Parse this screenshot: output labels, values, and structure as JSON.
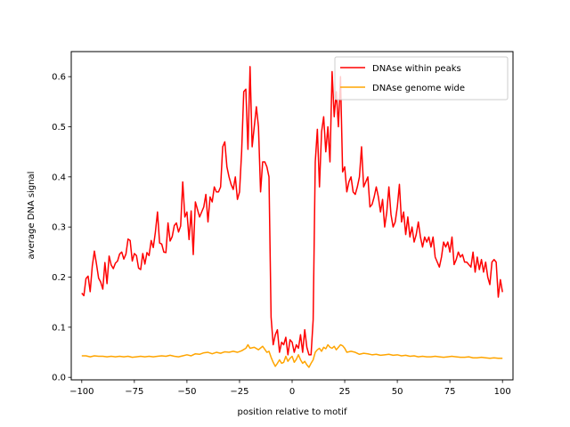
{
  "chart_data": {
    "type": "line",
    "xlabel": "position relative to motif",
    "ylabel": "average DNA signal",
    "xlim": [
      -105,
      105
    ],
    "ylim": [
      -0.005,
      0.65
    ],
    "xticks": [
      -100,
      -75,
      -50,
      -25,
      0,
      25,
      50,
      75,
      100
    ],
    "yticks": [
      0.0,
      0.1,
      0.2,
      0.3,
      0.4,
      0.5,
      0.6
    ],
    "grid": false,
    "legend_position": "top-right",
    "series": [
      {
        "name": "DNAse within peaks",
        "color": "#ff0000",
        "points": [
          [
            -100,
            0.168
          ],
          [
            -99,
            0.163
          ],
          [
            -98,
            0.197
          ],
          [
            -97,
            0.202
          ],
          [
            -96,
            0.171
          ],
          [
            -95,
            0.222
          ],
          [
            -94,
            0.252
          ],
          [
            -93,
            0.226
          ],
          [
            -92,
            0.198
          ],
          [
            -91,
            0.19
          ],
          [
            -90,
            0.176
          ],
          [
            -89,
            0.229
          ],
          [
            -88,
            0.187
          ],
          [
            -87,
            0.242
          ],
          [
            -86,
            0.224
          ],
          [
            -85,
            0.217
          ],
          [
            -84,
            0.228
          ],
          [
            -83,
            0.232
          ],
          [
            -82,
            0.246
          ],
          [
            -81,
            0.25
          ],
          [
            -80,
            0.236
          ],
          [
            -79,
            0.246
          ],
          [
            -78,
            0.276
          ],
          [
            -77,
            0.273
          ],
          [
            -76,
            0.232
          ],
          [
            -75,
            0.247
          ],
          [
            -74,
            0.243
          ],
          [
            -73,
            0.218
          ],
          [
            -72,
            0.215
          ],
          [
            -71,
            0.247
          ],
          [
            -70,
            0.226
          ],
          [
            -69,
            0.249
          ],
          [
            -68,
            0.243
          ],
          [
            -67,
            0.273
          ],
          [
            -66,
            0.259
          ],
          [
            -65,
            0.29
          ],
          [
            -64,
            0.33
          ],
          [
            -63,
            0.268
          ],
          [
            -62,
            0.266
          ],
          [
            -61,
            0.25
          ],
          [
            -60,
            0.249
          ],
          [
            -59,
            0.308
          ],
          [
            -58,
            0.272
          ],
          [
            -57,
            0.281
          ],
          [
            -56,
            0.303
          ],
          [
            -55,
            0.308
          ],
          [
            -54,
            0.29
          ],
          [
            -53,
            0.302
          ],
          [
            -52,
            0.39
          ],
          [
            -51,
            0.32
          ],
          [
            -50,
            0.33
          ],
          [
            -49,
            0.275
          ],
          [
            -48,
            0.332
          ],
          [
            -47,
            0.245
          ],
          [
            -46,
            0.35
          ],
          [
            -45,
            0.335
          ],
          [
            -44,
            0.32
          ],
          [
            -43,
            0.33
          ],
          [
            -42,
            0.34
          ],
          [
            -41,
            0.365
          ],
          [
            -40,
            0.31
          ],
          [
            -39,
            0.36
          ],
          [
            -38,
            0.35
          ],
          [
            -37,
            0.38
          ],
          [
            -36,
            0.37
          ],
          [
            -35,
            0.37
          ],
          [
            -34,
            0.38
          ],
          [
            -33,
            0.46
          ],
          [
            -32,
            0.47
          ],
          [
            -31,
            0.42
          ],
          [
            -30,
            0.4
          ],
          [
            -29,
            0.385
          ],
          [
            -28,
            0.375
          ],
          [
            -27,
            0.4
          ],
          [
            -26,
            0.355
          ],
          [
            -25,
            0.37
          ],
          [
            -24,
            0.45
          ],
          [
            -23,
            0.57
          ],
          [
            -22,
            0.575
          ],
          [
            -21,
            0.455
          ],
          [
            -20,
            0.62
          ],
          [
            -19,
            0.46
          ],
          [
            -18,
            0.5
          ],
          [
            -17,
            0.54
          ],
          [
            -16,
            0.5
          ],
          [
            -15,
            0.37
          ],
          [
            -14,
            0.43
          ],
          [
            -13,
            0.43
          ],
          [
            -12,
            0.42
          ],
          [
            -11,
            0.4
          ],
          [
            -10,
            0.12
          ],
          [
            -9,
            0.065
          ],
          [
            -8,
            0.085
          ],
          [
            -7,
            0.095
          ],
          [
            -6,
            0.05
          ],
          [
            -5,
            0.07
          ],
          [
            -4,
            0.065
          ],
          [
            -3,
            0.08
          ],
          [
            -2,
            0.045
          ],
          [
            -1,
            0.075
          ],
          [
            0,
            0.07
          ],
          [
            1,
            0.05
          ],
          [
            2,
            0.065
          ],
          [
            3,
            0.058
          ],
          [
            4,
            0.085
          ],
          [
            5,
            0.05
          ],
          [
            6,
            0.095
          ],
          [
            7,
            0.06
          ],
          [
            8,
            0.045
          ],
          [
            9,
            0.045
          ],
          [
            10,
            0.115
          ],
          [
            11,
            0.43
          ],
          [
            12,
            0.495
          ],
          [
            13,
            0.38
          ],
          [
            14,
            0.49
          ],
          [
            15,
            0.52
          ],
          [
            16,
            0.45
          ],
          [
            17,
            0.5
          ],
          [
            18,
            0.43
          ],
          [
            19,
            0.61
          ],
          [
            20,
            0.52
          ],
          [
            21,
            0.57
          ],
          [
            22,
            0.5
          ],
          [
            23,
            0.6
          ],
          [
            24,
            0.41
          ],
          [
            25,
            0.42
          ],
          [
            26,
            0.37
          ],
          [
            27,
            0.39
          ],
          [
            28,
            0.4
          ],
          [
            29,
            0.37
          ],
          [
            30,
            0.365
          ],
          [
            31,
            0.38
          ],
          [
            32,
            0.4
          ],
          [
            33,
            0.46
          ],
          [
            34,
            0.38
          ],
          [
            35,
            0.39
          ],
          [
            36,
            0.4
          ],
          [
            37,
            0.34
          ],
          [
            38,
            0.345
          ],
          [
            39,
            0.36
          ],
          [
            40,
            0.38
          ],
          [
            41,
            0.36
          ],
          [
            42,
            0.33
          ],
          [
            43,
            0.355
          ],
          [
            44,
            0.3
          ],
          [
            45,
            0.33
          ],
          [
            46,
            0.38
          ],
          [
            47,
            0.325
          ],
          [
            48,
            0.3
          ],
          [
            49,
            0.31
          ],
          [
            50,
            0.34
          ],
          [
            51,
            0.385
          ],
          [
            52,
            0.31
          ],
          [
            53,
            0.33
          ],
          [
            54,
            0.285
          ],
          [
            55,
            0.32
          ],
          [
            56,
            0.28
          ],
          [
            57,
            0.3
          ],
          [
            58,
            0.27
          ],
          [
            59,
            0.285
          ],
          [
            60,
            0.31
          ],
          [
            61,
            0.28
          ],
          [
            62,
            0.26
          ],
          [
            63,
            0.28
          ],
          [
            64,
            0.27
          ],
          [
            65,
            0.28
          ],
          [
            66,
            0.26
          ],
          [
            67,
            0.28
          ],
          [
            68,
            0.24
          ],
          [
            69,
            0.23
          ],
          [
            70,
            0.22
          ],
          [
            71,
            0.24
          ],
          [
            72,
            0.27
          ],
          [
            73,
            0.26
          ],
          [
            74,
            0.27
          ],
          [
            75,
            0.25
          ],
          [
            76,
            0.28
          ],
          [
            77,
            0.225
          ],
          [
            78,
            0.235
          ],
          [
            79,
            0.25
          ],
          [
            80,
            0.24
          ],
          [
            81,
            0.245
          ],
          [
            82,
            0.23
          ],
          [
            83,
            0.23
          ],
          [
            84,
            0.225
          ],
          [
            85,
            0.22
          ],
          [
            86,
            0.25
          ],
          [
            87,
            0.21
          ],
          [
            88,
            0.24
          ],
          [
            89,
            0.215
          ],
          [
            90,
            0.235
          ],
          [
            91,
            0.21
          ],
          [
            92,
            0.23
          ],
          [
            93,
            0.2
          ],
          [
            94,
            0.185
          ],
          [
            95,
            0.23
          ],
          [
            96,
            0.235
          ],
          [
            97,
            0.23
          ],
          [
            98,
            0.16
          ],
          [
            99,
            0.195
          ],
          [
            100,
            0.17
          ]
        ]
      },
      {
        "name": "DNAse genome wide",
        "color": "#ffa500",
        "points": [
          [
            -100,
            0.043
          ],
          [
            -98,
            0.043
          ],
          [
            -96,
            0.041
          ],
          [
            -94,
            0.043
          ],
          [
            -92,
            0.042
          ],
          [
            -90,
            0.042
          ],
          [
            -88,
            0.041
          ],
          [
            -86,
            0.042
          ],
          [
            -84,
            0.041
          ],
          [
            -82,
            0.042
          ],
          [
            -80,
            0.041
          ],
          [
            -78,
            0.042
          ],
          [
            -76,
            0.04
          ],
          [
            -74,
            0.041
          ],
          [
            -72,
            0.042
          ],
          [
            -70,
            0.041
          ],
          [
            -68,
            0.042
          ],
          [
            -66,
            0.041
          ],
          [
            -64,
            0.042
          ],
          [
            -62,
            0.043
          ],
          [
            -60,
            0.042
          ],
          [
            -58,
            0.044
          ],
          [
            -56,
            0.042
          ],
          [
            -54,
            0.041
          ],
          [
            -52,
            0.043
          ],
          [
            -50,
            0.045
          ],
          [
            -48,
            0.043
          ],
          [
            -46,
            0.047
          ],
          [
            -44,
            0.046
          ],
          [
            -42,
            0.049
          ],
          [
            -40,
            0.05
          ],
          [
            -38,
            0.047
          ],
          [
            -36,
            0.05
          ],
          [
            -34,
            0.048
          ],
          [
            -32,
            0.051
          ],
          [
            -30,
            0.05
          ],
          [
            -28,
            0.052
          ],
          [
            -26,
            0.05
          ],
          [
            -24,
            0.053
          ],
          [
            -22,
            0.058
          ],
          [
            -21,
            0.065
          ],
          [
            -20,
            0.058
          ],
          [
            -18,
            0.06
          ],
          [
            -16,
            0.055
          ],
          [
            -14,
            0.062
          ],
          [
            -12,
            0.05
          ],
          [
            -11,
            0.052
          ],
          [
            -10,
            0.04
          ],
          [
            -9,
            0.03
          ],
          [
            -8,
            0.022
          ],
          [
            -7,
            0.028
          ],
          [
            -6,
            0.035
          ],
          [
            -5,
            0.028
          ],
          [
            -4,
            0.03
          ],
          [
            -3,
            0.042
          ],
          [
            -2,
            0.032
          ],
          [
            -1,
            0.038
          ],
          [
            0,
            0.042
          ],
          [
            1,
            0.03
          ],
          [
            2,
            0.036
          ],
          [
            3,
            0.045
          ],
          [
            4,
            0.035
          ],
          [
            5,
            0.028
          ],
          [
            6,
            0.032
          ],
          [
            7,
            0.025
          ],
          [
            8,
            0.02
          ],
          [
            9,
            0.028
          ],
          [
            10,
            0.035
          ],
          [
            11,
            0.05
          ],
          [
            12,
            0.055
          ],
          [
            13,
            0.058
          ],
          [
            14,
            0.052
          ],
          [
            15,
            0.06
          ],
          [
            16,
            0.057
          ],
          [
            17,
            0.065
          ],
          [
            18,
            0.06
          ],
          [
            19,
            0.058
          ],
          [
            20,
            0.062
          ],
          [
            21,
            0.055
          ],
          [
            22,
            0.06
          ],
          [
            23,
            0.065
          ],
          [
            24,
            0.063
          ],
          [
            25,
            0.058
          ],
          [
            26,
            0.05
          ],
          [
            28,
            0.052
          ],
          [
            30,
            0.05
          ],
          [
            32,
            0.046
          ],
          [
            34,
            0.048
          ],
          [
            36,
            0.047
          ],
          [
            38,
            0.045
          ],
          [
            40,
            0.046
          ],
          [
            42,
            0.044
          ],
          [
            44,
            0.045
          ],
          [
            46,
            0.046
          ],
          [
            48,
            0.044
          ],
          [
            50,
            0.045
          ],
          [
            52,
            0.043
          ],
          [
            54,
            0.044
          ],
          [
            56,
            0.042
          ],
          [
            58,
            0.043
          ],
          [
            60,
            0.041
          ],
          [
            62,
            0.042
          ],
          [
            64,
            0.041
          ],
          [
            66,
            0.041
          ],
          [
            68,
            0.042
          ],
          [
            70,
            0.041
          ],
          [
            72,
            0.04
          ],
          [
            74,
            0.041
          ],
          [
            76,
            0.042
          ],
          [
            78,
            0.041
          ],
          [
            80,
            0.04
          ],
          [
            82,
            0.04
          ],
          [
            84,
            0.041
          ],
          [
            86,
            0.039
          ],
          [
            88,
            0.039
          ],
          [
            90,
            0.04
          ],
          [
            92,
            0.039
          ],
          [
            94,
            0.038
          ],
          [
            96,
            0.039
          ],
          [
            98,
            0.038
          ],
          [
            100,
            0.038
          ]
        ]
      }
    ]
  }
}
